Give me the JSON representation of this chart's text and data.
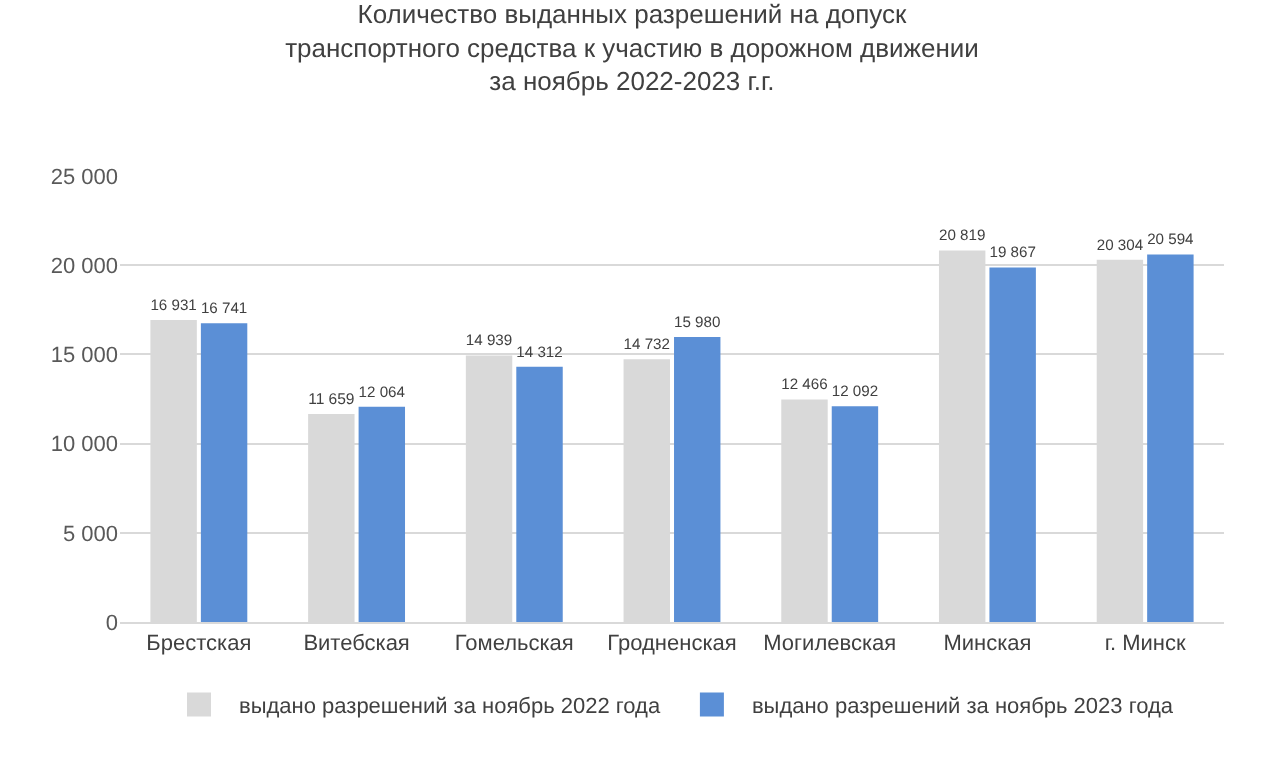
{
  "chart_data": {
    "type": "bar",
    "title": "Количество выданных разрешений на допуск\nтранспортного средства к участию в дорожном движении\nза ноябрь 2022-2023 г.г.",
    "categories": [
      "Брестская",
      "Витебская",
      "Гомельская",
      "Гродненская",
      "Могилевская",
      "Минская",
      "г. Минск"
    ],
    "series": [
      {
        "name": "выдано разрешений за ноябрь 2022 года",
        "color": "#d9d9d9",
        "values": [
          16931,
          11659,
          14939,
          14732,
          12466,
          20819,
          20304
        ],
        "value_labels": [
          "16 931",
          "11 659",
          "14 939",
          "14 732",
          "12 466",
          "20 819",
          "20 304"
        ]
      },
      {
        "name": "выдано разрешений за ноябрь 2023 года",
        "color": "#5b8fd6",
        "values": [
          16741,
          12064,
          14312,
          15980,
          12092,
          19867,
          20594
        ],
        "value_labels": [
          "16 741",
          "12 064",
          "14 312",
          "15 980",
          "12 092",
          "19 867",
          "20 594"
        ]
      }
    ],
    "ylim": [
      0,
      25000
    ],
    "yticks": [
      {
        "value": 0,
        "label": "0"
      },
      {
        "value": 5000,
        "label": "5 000"
      },
      {
        "value": 10000,
        "label": "10 000"
      },
      {
        "value": 15000,
        "label": "15 000"
      },
      {
        "value": 20000,
        "label": "20 000"
      },
      {
        "value": 25000,
        "label": "25 000"
      }
    ],
    "grid": "y",
    "legend": "bottom"
  }
}
